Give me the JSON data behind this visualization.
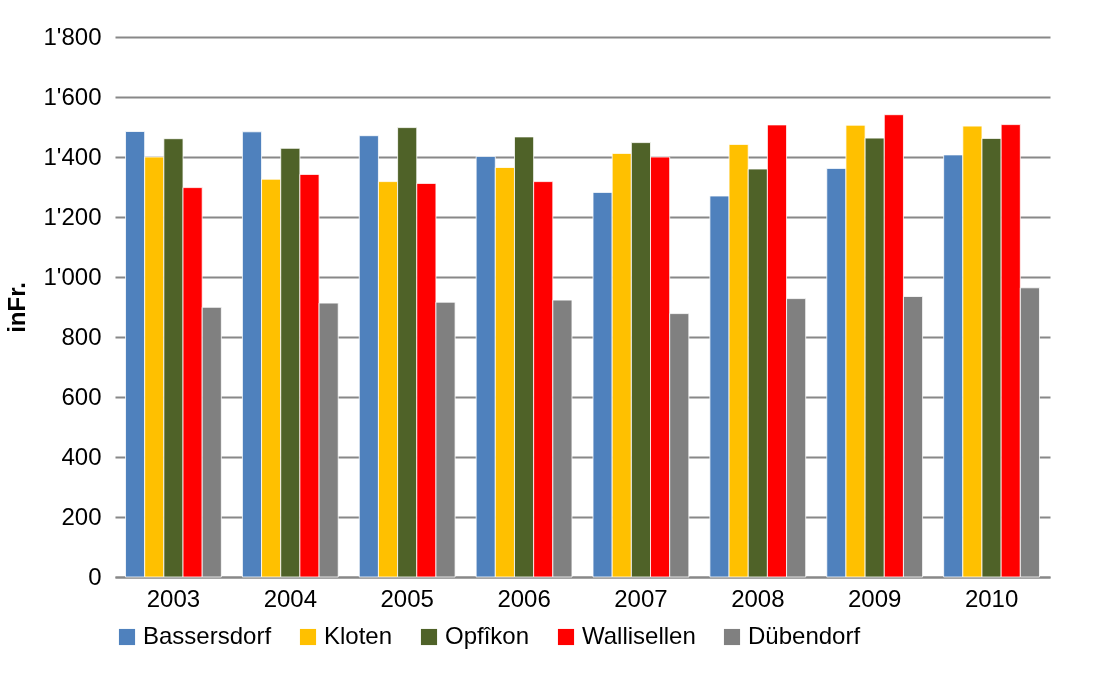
{
  "chart_data": {
    "type": "bar",
    "ylabel": "inFr.",
    "categories": [
      "2003",
      "2004",
      "2005",
      "2006",
      "2007",
      "2008",
      "2009",
      "2010"
    ],
    "series": [
      {
        "name": "Bassersdorf",
        "color": "#4f81bd",
        "values": [
          1485,
          1484,
          1471,
          1402,
          1282,
          1270,
          1362,
          1407
        ]
      },
      {
        "name": "Kloten",
        "color": "#ffc000",
        "values": [
          1400,
          1326,
          1318,
          1365,
          1412,
          1442,
          1506,
          1503
        ]
      },
      {
        "name": "Opfîkon",
        "color": "#4f6228",
        "values": [
          1461,
          1429,
          1498,
          1467,
          1448,
          1360,
          1463,
          1462
        ]
      },
      {
        "name": "Wallisellen",
        "color": "#ff0000",
        "values": [
          1298,
          1342,
          1312,
          1318,
          1400,
          1507,
          1541,
          1508
        ]
      },
      {
        "name": "Dübendorf",
        "color": "#808080",
        "values": [
          899,
          913,
          916,
          923,
          878,
          928,
          935,
          964
        ]
      }
    ],
    "ylim": [
      0,
      1800
    ],
    "yticks": [
      0,
      200,
      400,
      600,
      800,
      {
        "value": 1000,
        "label": "1'000"
      },
      {
        "value": 1200,
        "label": "1'200"
      },
      {
        "value": 1400,
        "label": "1'400"
      },
      {
        "value": 1600,
        "label": "1'600"
      },
      {
        "value": 1800,
        "label": "1'800"
      }
    ],
    "grid": "y",
    "legend": "bottom"
  }
}
